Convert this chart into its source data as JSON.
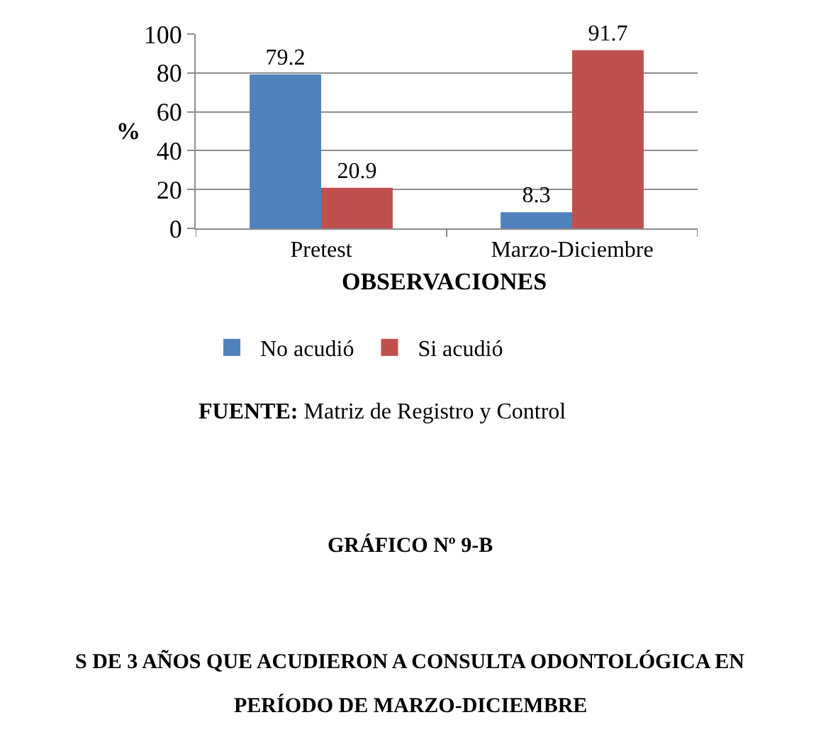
{
  "chart_data": {
    "type": "bar",
    "ylabel": "%",
    "xlabel": "OBSERVACIONES",
    "categories": [
      "Pretest",
      "Marzo-Diciembre"
    ],
    "series": [
      {
        "name": "No acudió",
        "color": "#4f81bd",
        "values": [
          79.2,
          8.3
        ]
      },
      {
        "name": "Si acudió",
        "color": "#c0504d",
        "values": [
          20.9,
          91.7
        ]
      }
    ],
    "ylim": [
      0,
      100
    ],
    "yticks": [
      0,
      20,
      40,
      60,
      80,
      100
    ],
    "grid": "y",
    "legend": "bottom",
    "data_labels": true,
    "annotations": [
      "FUENTE: Matriz de Registro y Control",
      "GRÁFICO Nº 9-B",
      "S DE 3 AÑOS QUE ACUDIERON A CONSULTA ODONTOLÓGICA EN",
      "PERÍODO DE MARZO-DICIEMBRE"
    ]
  }
}
